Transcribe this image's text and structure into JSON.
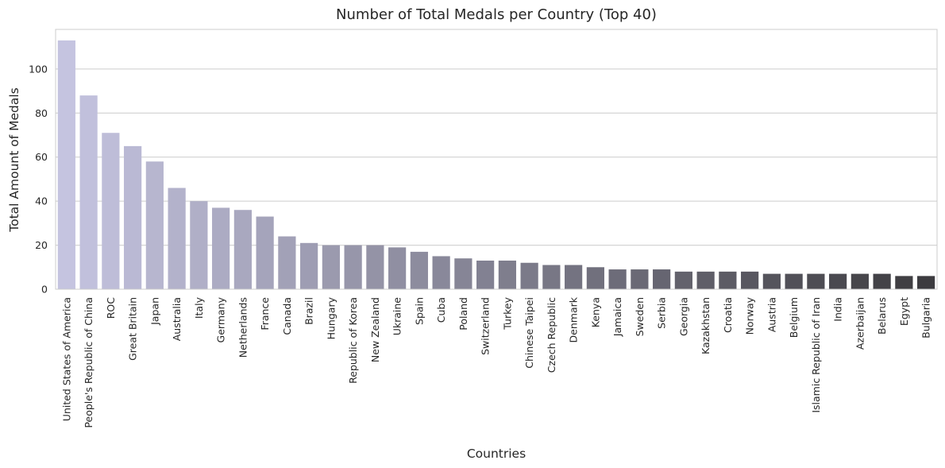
{
  "chart_data": {
    "type": "bar",
    "title": "Number of Total Medals per Country (Top 40)",
    "xlabel": "Countries",
    "ylabel": "Total Amount of Medals",
    "ylim": [
      0,
      118
    ],
    "yticks": [
      0,
      20,
      40,
      60,
      80,
      100
    ],
    "grid": "horizontal",
    "categories": [
      "United States of America",
      "People's Republic of China",
      "ROC",
      "Great Britain",
      "Japan",
      "Australia",
      "Italy",
      "Germany",
      "Netherlands",
      "France",
      "Canada",
      "Brazil",
      "Hungary",
      "Republic of Korea",
      "New Zealand",
      "Ukraine",
      "Spain",
      "Cuba",
      "Poland",
      "Switzerland",
      "Turkey",
      "Chinese Taipei",
      "Czech Republic",
      "Denmark",
      "Kenya",
      "Jamaica",
      "Sweden",
      "Serbia",
      "Georgia",
      "Kazakhstan",
      "Croatia",
      "Norway",
      "Austria",
      "Belgium",
      "Islamic Republic of Iran",
      "India",
      "Azerbaijan",
      "Belarus",
      "Egypt",
      "Bulgaria"
    ],
    "values": [
      113,
      88,
      71,
      65,
      58,
      46,
      40,
      37,
      36,
      33,
      24,
      21,
      20,
      20,
      20,
      19,
      17,
      15,
      14,
      13,
      13,
      12,
      11,
      11,
      10,
      9,
      9,
      9,
      8,
      8,
      8,
      8,
      7,
      7,
      7,
      7,
      7,
      7,
      6,
      6
    ],
    "palette": "Purples_d",
    "color_start": "#c5c4e0",
    "color_end": "#3c3b3f"
  }
}
